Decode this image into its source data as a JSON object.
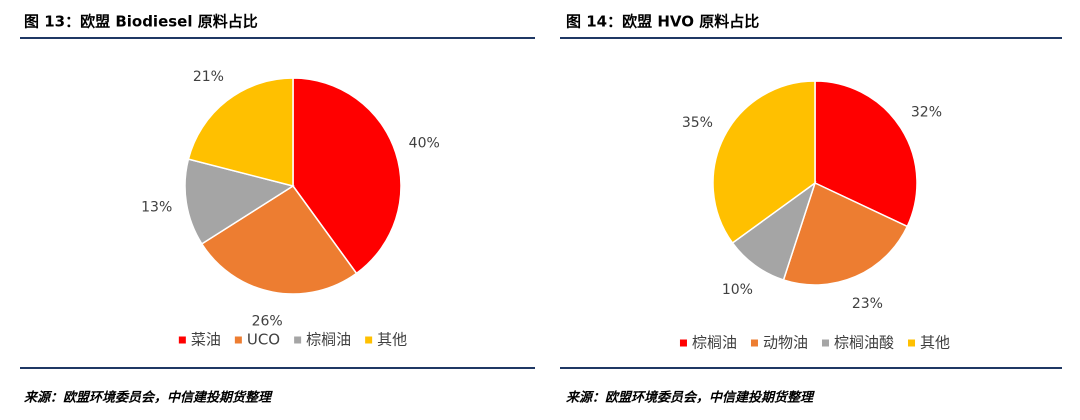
{
  "chart_data": [
    {
      "type": "pie",
      "title": "图 13：欧盟 Biodiesel 原料占比",
      "categories": [
        "菜油",
        "UCO",
        "棕榈油",
        "其他"
      ],
      "values": [
        40,
        26,
        13,
        21
      ],
      "value_labels": [
        "40%",
        "26%",
        "13%",
        "21%"
      ],
      "colors": [
        "#ff0000",
        "#ed7d31",
        "#a5a5a5",
        "#ffc000"
      ],
      "legend": "bottom"
    },
    {
      "type": "pie",
      "title": "图 14：欧盟 HVO 原料占比",
      "categories": [
        "棕榈油",
        "动物油",
        "棕榈油酸",
        "其他"
      ],
      "values": [
        32,
        23,
        10,
        35
      ],
      "value_labels": [
        "32%",
        "23%",
        "10%",
        "35%"
      ],
      "colors": [
        "#ff0000",
        "#ed7d31",
        "#a5a5a5",
        "#ffc000"
      ],
      "legend": "bottom"
    }
  ],
  "sources": [
    "来源：欧盟环境委员会，中信建投期货整理",
    "来源：欧盟环境委员会，中信建投期货整理"
  ]
}
